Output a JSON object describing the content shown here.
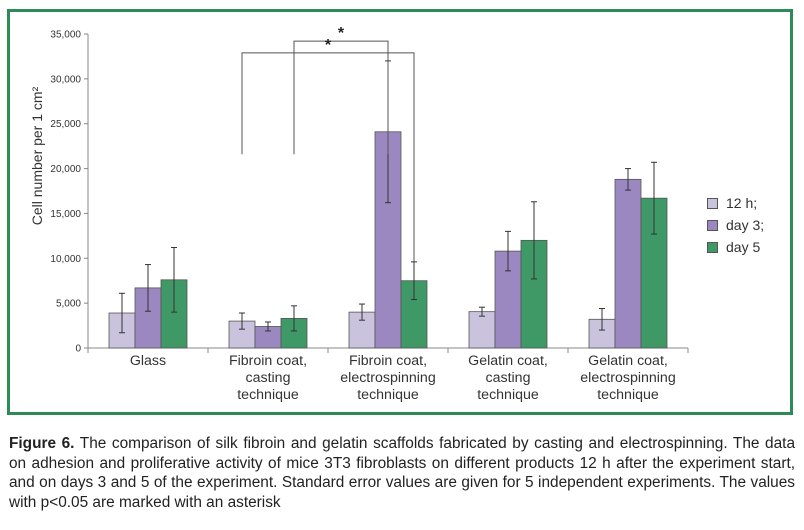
{
  "chart_data": {
    "type": "bar",
    "categories": [
      "Glass",
      "Fibroin coat,\ncasting\ntechnique",
      "Fibroin coat,\nelectrospinning\ntechnique",
      "Gelatin coat,\ncasting\ntechnique",
      "Gelatin coat,\nelectrospinning\ntechnique"
    ],
    "series": [
      {
        "name": "12 h;",
        "color": "#c9c3dd",
        "values": [
          3900,
          3000,
          4000,
          4050,
          3200
        ],
        "errors": [
          2200,
          900,
          900,
          500,
          1200
        ]
      },
      {
        "name": "day 3;",
        "color": "#9b88c0",
        "values": [
          6700,
          2400,
          24100,
          10800,
          18800
        ],
        "errors": [
          2600,
          500,
          7900,
          2200,
          1200
        ]
      },
      {
        "name": "day 5",
        "color": "#3f9966",
        "values": [
          7600,
          3300,
          7500,
          12000,
          16700
        ],
        "errors": [
          3600,
          1400,
          2100,
          4300,
          4000
        ]
      }
    ],
    "ylabel": "Cell number per 1 cm²",
    "ylim": [
      0,
      35000
    ],
    "yticks": [
      "0",
      "5,000",
      "10,000",
      "15,000",
      "20,000",
      "25,000",
      "30,000",
      "35,000"
    ],
    "ytick_values": [
      0,
      5000,
      10000,
      15000,
      20000,
      25000,
      30000,
      35000
    ],
    "grid": false,
    "legend_position": "right",
    "significance": [
      {
        "label": "*",
        "from_category": 1,
        "to_category": 2,
        "from_series": 2,
        "to_series": 1
      },
      {
        "label": "*",
        "from_category": 1,
        "to_category": 2,
        "from_series": 0,
        "to_series": 2
      }
    ]
  },
  "caption": {
    "label": "Figure 6.",
    "text": " The comparison of silk fibroin and gelatin scaffolds fabricated by casting and electrospinning. The data on adhesion and proliferative activity of mice 3T3 fibroblasts on different products 12 h after the experiment start, and on days 3 and 5 of the experiment. Standard error values are given for 5 independent experiments. The values with p<0.05 are marked with an asterisk"
  }
}
